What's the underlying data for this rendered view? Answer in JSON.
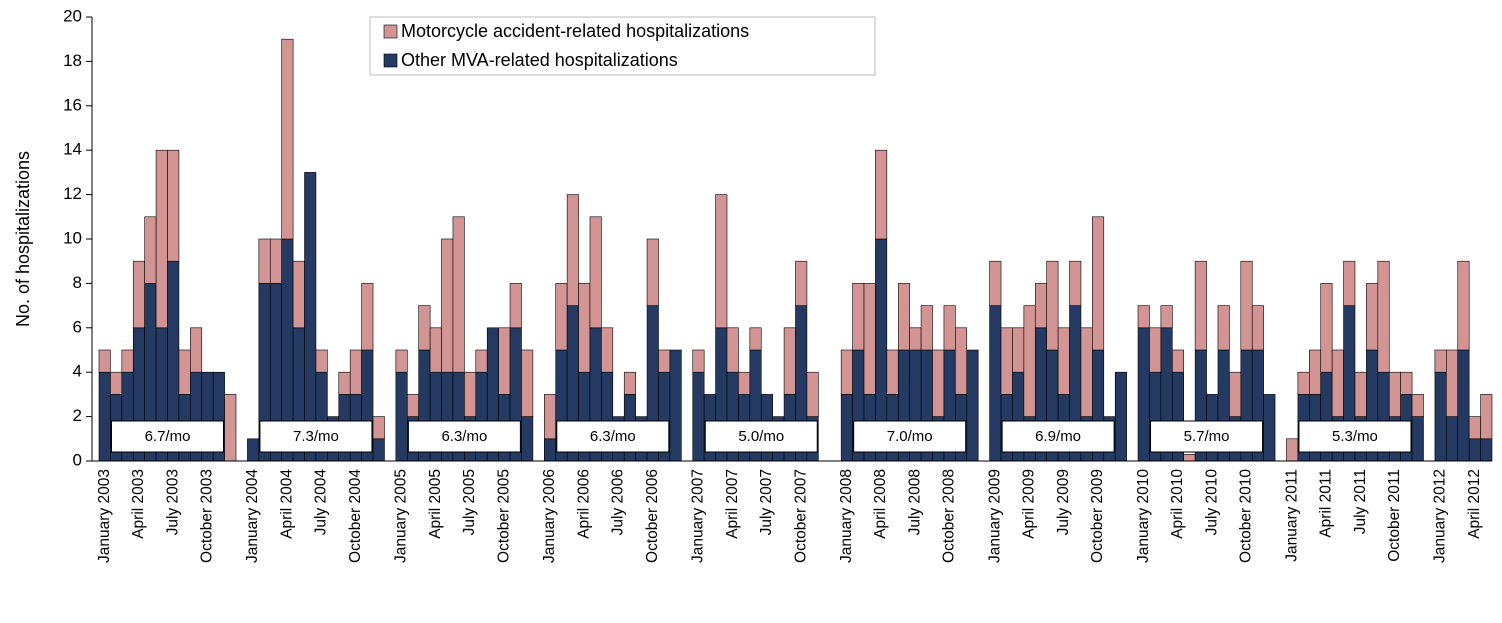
{
  "chart_data": {
    "type": "stacked-bar",
    "y_label": "No. of hospitalizations",
    "ylim": [
      0,
      20
    ],
    "yticks": [
      0,
      2,
      4,
      6,
      8,
      10,
      12,
      14,
      16,
      18,
      20
    ],
    "categories": [
      "January 2003",
      null,
      null,
      "April 2003",
      null,
      null,
      "July 2003",
      null,
      null,
      "October 2003",
      null,
      null,
      null,
      "January 2004",
      null,
      null,
      "April 2004",
      null,
      null,
      "July 2004",
      null,
      null,
      "October 2004",
      null,
      null,
      null,
      "January 2005",
      null,
      null,
      "April 2005",
      null,
      null,
      "July 2005",
      null,
      null,
      "October 2005",
      null,
      null,
      null,
      "January 2006",
      null,
      null,
      "April 2006",
      null,
      null,
      "July 2006",
      null,
      null,
      "October 2006",
      null,
      null,
      null,
      "January 2007",
      null,
      null,
      "April 2007",
      null,
      null,
      "July 2007",
      null,
      null,
      "October 2007",
      null,
      null,
      null,
      "January 2008",
      null,
      null,
      "April 2008",
      null,
      null,
      "July 2008",
      null,
      null,
      "October 2008",
      null,
      null,
      null,
      "January 2009",
      null,
      null,
      "April 2009",
      null,
      null,
      "July 2009",
      null,
      null,
      "October 2009",
      null,
      null,
      null,
      "January 2010",
      null,
      null,
      "April 2010",
      null,
      null,
      "July 2010",
      null,
      null,
      "October 2010",
      null,
      null,
      null,
      "January 2011",
      null,
      null,
      "April 2011",
      null,
      null,
      "July 2011",
      null,
      null,
      "October 2011",
      null,
      null,
      null,
      "January 2012",
      null,
      null,
      "April 2012",
      null
    ],
    "series": [
      {
        "name": "Other MVA-related hospitalizations",
        "color": "#243a63",
        "values": [
          4,
          3,
          4,
          6,
          8,
          6,
          9,
          3,
          4,
          4,
          4,
          0,
          null,
          1,
          8,
          8,
          10,
          6,
          13,
          4,
          2,
          3,
          3,
          5,
          1,
          null,
          4,
          2,
          5,
          4,
          4,
          4,
          2,
          4,
          6,
          3,
          6,
          2,
          null,
          1,
          5,
          7,
          4,
          6,
          4,
          2,
          3,
          2,
          7,
          4,
          5,
          null,
          4,
          3,
          6,
          4,
          3,
          5,
          3,
          2,
          3,
          7,
          2,
          0,
          null,
          3,
          5,
          3,
          10,
          3,
          5,
          5,
          5,
          2,
          5,
          3,
          5,
          null,
          7,
          3,
          4,
          2,
          6,
          5,
          3,
          7,
          2,
          5,
          2,
          4,
          null,
          6,
          4,
          6,
          4,
          0,
          5,
          3,
          5,
          2,
          5,
          5,
          3,
          null,
          0,
          3,
          3,
          4,
          2,
          7,
          2,
          5,
          4,
          2,
          3,
          2,
          null,
          4,
          2,
          5,
          1,
          1
        ]
      },
      {
        "name": "Motorcycle accident-related hospitalizations",
        "color": "#d29594",
        "values": [
          1,
          1,
          1,
          3,
          3,
          8,
          5,
          2,
          2,
          0,
          0,
          3,
          null,
          0,
          2,
          2,
          9,
          3,
          0,
          1,
          0,
          1,
          2,
          3,
          1,
          null,
          1,
          1,
          2,
          2,
          6,
          7,
          2,
          1,
          0,
          3,
          2,
          3,
          null,
          2,
          3,
          5,
          4,
          5,
          2,
          0,
          1,
          0,
          3,
          1,
          0,
          null,
          1,
          0,
          6,
          2,
          1,
          1,
          0,
          0,
          3,
          2,
          2,
          0,
          null,
          2,
          3,
          5,
          4,
          2,
          3,
          1,
          2,
          3,
          2,
          3,
          0,
          null,
          2,
          3,
          2,
          5,
          2,
          4,
          3,
          2,
          4,
          6,
          0,
          0,
          null,
          1,
          2,
          1,
          1,
          0.3,
          4,
          0,
          2,
          2,
          4,
          2,
          0,
          null,
          1,
          1,
          2,
          4,
          3,
          2,
          2,
          3,
          5,
          2,
          1,
          1,
          null,
          1,
          3,
          4,
          1,
          2
        ]
      }
    ],
    "annotations": [
      "6.7/mo",
      "7.3/mo",
      "6.3/mo",
      "6.3/mo",
      "5.0/mo",
      "7.0/mo",
      "6.9/mo",
      "5.7/mo",
      "5.3/mo"
    ]
  }
}
